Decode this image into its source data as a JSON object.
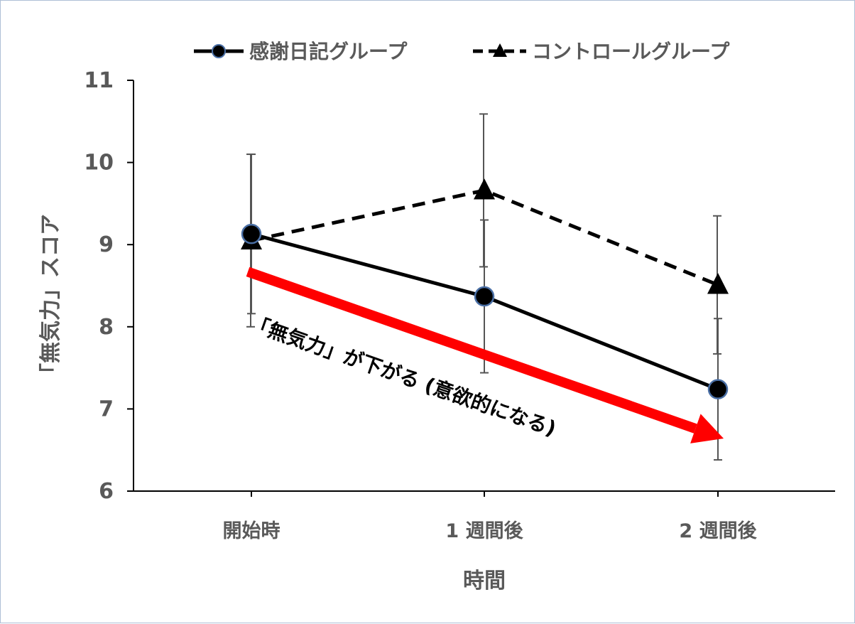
{
  "chart_data": {
    "type": "line",
    "categories": [
      "開始時",
      "1 週間後",
      "2 週間後"
    ],
    "xlabel": "時間",
    "ylabel": "「無気力」スコア",
    "ylim": [
      6,
      11
    ],
    "yticks": [
      6,
      7,
      8,
      9,
      10,
      11
    ],
    "grid": false,
    "legend_position": "top",
    "series": [
      {
        "name": "感謝日記グループ",
        "values": [
          9.13,
          8.37,
          7.24
        ],
        "error": [
          0.97,
          0.93,
          0.86
        ],
        "marker": "circle",
        "line_style": "solid",
        "color": "#000000",
        "marker_edge_color": "#4a6fa5"
      },
      {
        "name": "コントロールグループ",
        "values": [
          9.05,
          9.66,
          8.51
        ],
        "error": [
          1.05,
          0.93,
          0.84
        ],
        "marker": "triangle",
        "line_style": "dashed",
        "color": "#000000"
      }
    ],
    "annotation": {
      "text": "「無気力」が下がる (意欲的になる)",
      "arrow_color": "#ff0000",
      "arrow_from": {
        "x_index": 0,
        "y": 8.67
      },
      "arrow_to": {
        "x_index": 2,
        "y": 6.64
      }
    }
  }
}
